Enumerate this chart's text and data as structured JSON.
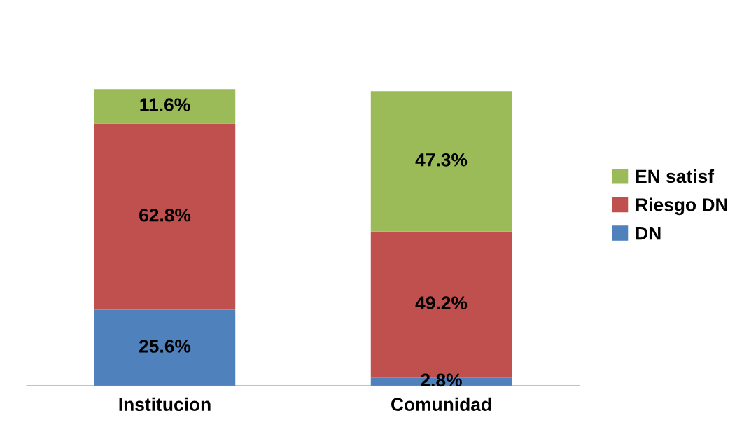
{
  "chart_data": {
    "type": "bar",
    "stacked": true,
    "legend": "right",
    "categories": [
      "Institucion",
      "Comunidad"
    ],
    "series": [
      {
        "name": "DN",
        "color": "#4f81bd",
        "values": [
          25.6,
          2.8
        ],
        "value_labels": [
          "25.6%",
          "2.8%"
        ]
      },
      {
        "name": "Riesgo DN",
        "color": "#c0504d",
        "values": [
          62.8,
          49.2
        ],
        "value_labels": [
          "62.8%",
          "49.2%"
        ]
      },
      {
        "name": "EN satisf",
        "color": "#9bbb59",
        "values": [
          11.6,
          47.3
        ],
        "value_labels": [
          "11.6%",
          "47.3%"
        ]
      }
    ]
  }
}
